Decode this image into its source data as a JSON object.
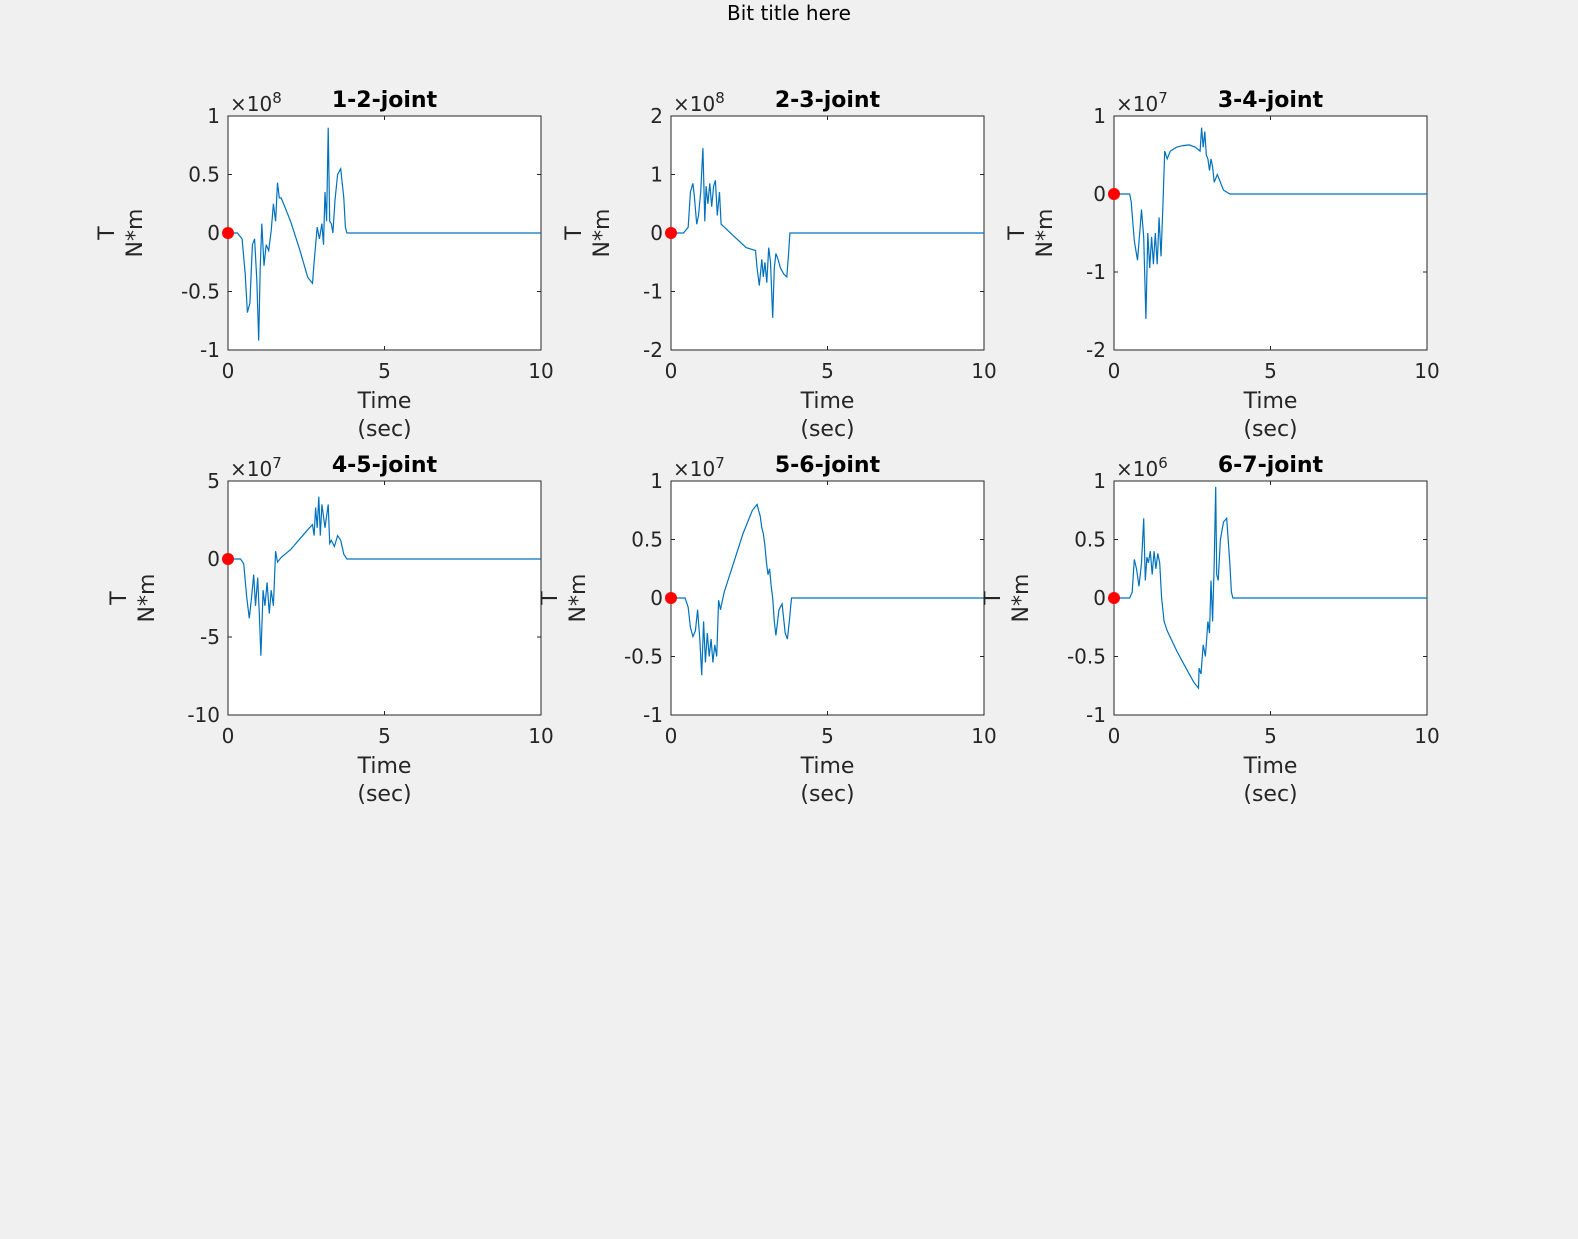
{
  "figure_title": "Bit title here",
  "colors": {
    "line": "#0072bd",
    "marker": "#ff0000",
    "figure_bg": "#f0f0f0",
    "axes_bg": "#ffffff"
  },
  "chart_data": [
    {
      "type": "line",
      "title": "1-2-joint",
      "xlabel": [
        "Time",
        "(sec)"
      ],
      "ylabel": [
        "T",
        "N*m"
      ],
      "xlim": [
        0,
        10
      ],
      "ylim": [
        -1,
        1
      ],
      "xticks": [
        0,
        5,
        10
      ],
      "yticks": [
        -1,
        -0.5,
        0,
        0.5,
        1
      ],
      "ytick_labels": [
        "-1",
        "-0.5",
        "0",
        "0.5",
        "1"
      ],
      "exponent": "8",
      "marker": {
        "x": 0,
        "y": 0
      },
      "series": [
        {
          "x": [
            0,
            0.3,
            0.45,
            0.55,
            0.62,
            0.7,
            0.78,
            0.85,
            0.92,
            0.98,
            1.03,
            1.08,
            1.15,
            1.22,
            1.3,
            1.38,
            1.45,
            1.52,
            1.58,
            1.64,
            1.7,
            2.0,
            2.3,
            2.55,
            2.7,
            2.75,
            2.85,
            2.92,
            3.0,
            3.05,
            3.1,
            3.15,
            3.2,
            3.25,
            3.3,
            3.35,
            3.42,
            3.5,
            3.6,
            3.7,
            3.75,
            3.8,
            3.85,
            10
          ],
          "y": [
            0,
            0,
            -0.05,
            -0.35,
            -0.68,
            -0.6,
            -0.1,
            -0.05,
            -0.4,
            -0.92,
            -0.3,
            0.08,
            -0.28,
            -0.1,
            -0.15,
            0.02,
            0.25,
            0.1,
            0.43,
            0.3,
            0.3,
            0.1,
            -0.15,
            -0.38,
            -0.43,
            -0.25,
            0.05,
            -0.05,
            0.08,
            -0.1,
            0.35,
            0.1,
            0.9,
            0.1,
            0.08,
            0.0,
            0.28,
            0.5,
            0.55,
            0.3,
            0.05,
            0,
            0,
            0
          ]
        }
      ]
    },
    {
      "type": "line",
      "title": "2-3-joint",
      "xlabel": [
        "Time",
        "(sec)"
      ],
      "ylabel": [
        "T",
        "N*m"
      ],
      "xlim": [
        0,
        10
      ],
      "ylim": [
        -2,
        2
      ],
      "xticks": [
        0,
        5,
        10
      ],
      "yticks": [
        -2,
        -1,
        0,
        1,
        2
      ],
      "ytick_labels": [
        "-2",
        "-1",
        "0",
        "1",
        "2"
      ],
      "exponent": "8",
      "marker": {
        "x": 0,
        "y": 0
      },
      "series": [
        {
          "x": [
            0,
            0.4,
            0.55,
            0.62,
            0.7,
            0.75,
            0.82,
            0.88,
            0.95,
            1.02,
            1.08,
            1.12,
            1.18,
            1.24,
            1.3,
            1.36,
            1.42,
            1.48,
            1.55,
            1.6,
            1.7,
            2.0,
            2.4,
            2.7,
            2.75,
            2.82,
            2.9,
            2.95,
            3.0,
            3.06,
            3.12,
            3.18,
            3.25,
            3.3,
            3.35,
            3.42,
            3.5,
            3.6,
            3.7,
            3.75,
            3.8,
            3.85,
            10
          ],
          "y": [
            0,
            0,
            0.1,
            0.7,
            0.85,
            0.6,
            0.15,
            0.3,
            0.7,
            1.45,
            0.2,
            0.8,
            0.5,
            0.85,
            0.45,
            0.8,
            0.9,
            0.3,
            0.7,
            0.15,
            0.1,
            -0.05,
            -0.25,
            -0.3,
            -0.6,
            -0.9,
            -0.45,
            -0.75,
            -0.5,
            -0.85,
            -0.25,
            -0.5,
            -1.45,
            -0.6,
            -0.35,
            -0.45,
            -0.6,
            -0.7,
            -0.75,
            -0.4,
            0,
            0,
            0
          ]
        }
      ]
    },
    {
      "type": "line",
      "title": "3-4-joint",
      "xlabel": [
        "Time",
        "(sec)"
      ],
      "ylabel": [
        "T",
        "N*m"
      ],
      "xlim": [
        0,
        10
      ],
      "ylim": [
        -2,
        1
      ],
      "xticks": [
        0,
        5,
        10
      ],
      "yticks": [
        -2,
        -1,
        0,
        1
      ],
      "ytick_labels": [
        "-2",
        "-1",
        "0",
        "1"
      ],
      "exponent": "7",
      "marker": {
        "x": 0,
        "y": 0
      },
      "series": [
        {
          "x": [
            0,
            0.5,
            0.55,
            0.65,
            0.75,
            0.82,
            0.88,
            0.95,
            1.02,
            1.08,
            1.14,
            1.2,
            1.26,
            1.32,
            1.38,
            1.44,
            1.5,
            1.56,
            1.62,
            1.7,
            1.8,
            2.0,
            2.2,
            2.4,
            2.6,
            2.75,
            2.8,
            2.85,
            2.9,
            2.95,
            3.0,
            3.05,
            3.1,
            3.15,
            3.2,
            3.3,
            3.5,
            3.7,
            3.8,
            10
          ],
          "y": [
            0,
            0,
            -0.1,
            -0.6,
            -0.85,
            -0.5,
            -0.2,
            -0.55,
            -1.6,
            -0.5,
            -0.95,
            -0.55,
            -0.9,
            -0.5,
            -0.9,
            -0.3,
            -0.8,
            -0.2,
            0.55,
            0.45,
            0.55,
            0.6,
            0.62,
            0.63,
            0.6,
            0.55,
            0.85,
            0.6,
            0.8,
            0.5,
            0.45,
            0.3,
            0.45,
            0.35,
            0.15,
            0.25,
            0.05,
            0.0,
            0,
            0
          ]
        }
      ]
    },
    {
      "type": "line",
      "title": "4-5-joint",
      "xlabel": [
        "Time",
        "(sec)"
      ],
      "ylabel": [
        "T",
        "N*m"
      ],
      "xlim": [
        0,
        10
      ],
      "ylim": [
        -10,
        5
      ],
      "xticks": [
        0,
        5,
        10
      ],
      "yticks": [
        -10,
        -5,
        0,
        5
      ],
      "ytick_labels": [
        "-10",
        "-5",
        "0",
        "5"
      ],
      "exponent": "7",
      "marker": {
        "x": 0,
        "y": 0
      },
      "series": [
        {
          "x": [
            0,
            0.4,
            0.5,
            0.6,
            0.68,
            0.75,
            0.82,
            0.88,
            0.95,
            1.0,
            1.05,
            1.12,
            1.18,
            1.25,
            1.32,
            1.38,
            1.45,
            1.52,
            1.58,
            1.7,
            2.0,
            2.3,
            2.6,
            2.7,
            2.75,
            2.8,
            2.85,
            2.9,
            2.95,
            3.0,
            3.1,
            3.2,
            3.25,
            3.3,
            3.4,
            3.5,
            3.6,
            3.7,
            3.8,
            10
          ],
          "y": [
            0,
            0,
            -0.3,
            -2.5,
            -3.8,
            -2.5,
            -1.0,
            -3.0,
            -1.2,
            -3.5,
            -6.2,
            -2.0,
            -3.0,
            -1.5,
            -3.5,
            -2.0,
            -3.0,
            0.5,
            -0.2,
            0.1,
            0.6,
            1.3,
            2.0,
            2.2,
            1.5,
            3.3,
            2.0,
            4.0,
            1.5,
            3.5,
            2.0,
            3.5,
            1.0,
            1.2,
            0.8,
            1.5,
            1.2,
            0.3,
            0,
            0
          ]
        }
      ]
    },
    {
      "type": "line",
      "title": "5-6-joint",
      "xlabel": [
        "Time",
        "(sec)"
      ],
      "ylabel": [
        "T",
        "N*m"
      ],
      "xlim": [
        0,
        10
      ],
      "ylim": [
        -1,
        1
      ],
      "xticks": [
        0,
        5,
        10
      ],
      "yticks": [
        -1,
        -0.5,
        0,
        0.5,
        1
      ],
      "ytick_labels": [
        "-1",
        "-0.5",
        "0",
        "0.5",
        "1"
      ],
      "exponent": "7",
      "marker": {
        "x": 0,
        "y": 0
      },
      "series": [
        {
          "x": [
            0,
            0.45,
            0.55,
            0.62,
            0.7,
            0.78,
            0.85,
            0.92,
            0.98,
            1.04,
            1.1,
            1.16,
            1.22,
            1.28,
            1.34,
            1.4,
            1.46,
            1.52,
            1.58,
            1.62,
            1.7,
            2.0,
            2.3,
            2.6,
            2.75,
            2.8,
            2.85,
            2.9,
            2.95,
            3.0,
            3.05,
            3.1,
            3.15,
            3.2,
            3.25,
            3.3,
            3.35,
            3.45,
            3.55,
            3.65,
            3.72,
            3.78,
            3.85,
            10
          ],
          "y": [
            0,
            0,
            -0.08,
            -0.25,
            -0.33,
            -0.28,
            -0.1,
            -0.35,
            -0.66,
            -0.2,
            -0.55,
            -0.3,
            -0.5,
            -0.35,
            -0.55,
            -0.4,
            -0.5,
            -0.02,
            -0.1,
            -0.05,
            0.05,
            0.3,
            0.55,
            0.75,
            0.8,
            0.75,
            0.7,
            0.6,
            0.55,
            0.45,
            0.3,
            0.2,
            0.25,
            0.1,
            0.0,
            -0.2,
            -0.32,
            -0.1,
            -0.05,
            -0.3,
            -0.35,
            -0.2,
            0,
            0
          ]
        }
      ]
    },
    {
      "type": "line",
      "title": "6-7-joint",
      "xlabel": [
        "Time",
        "(sec)"
      ],
      "ylabel": [
        "T",
        "N*m"
      ],
      "xlim": [
        0,
        10
      ],
      "ylim": [
        -1,
        1
      ],
      "xticks": [
        0,
        5,
        10
      ],
      "yticks": [
        -1,
        -0.5,
        0,
        0.5,
        1
      ],
      "ytick_labels": [
        "-1",
        "-0.5",
        "0",
        "0.5",
        "1"
      ],
      "exponent": "6",
      "marker": {
        "x": 0,
        "y": 0
      },
      "series": [
        {
          "x": [
            0,
            0.5,
            0.58,
            0.65,
            0.72,
            0.8,
            0.88,
            0.95,
            1.0,
            1.05,
            1.1,
            1.16,
            1.22,
            1.28,
            1.34,
            1.4,
            1.46,
            1.52,
            1.6,
            1.7,
            2.0,
            2.3,
            2.55,
            2.7,
            2.72,
            2.78,
            2.85,
            2.92,
            3.0,
            3.05,
            3.1,
            3.15,
            3.2,
            3.25,
            3.28,
            3.33,
            3.4,
            3.5,
            3.6,
            3.7,
            3.75,
            3.8,
            3.85,
            10
          ],
          "y": [
            0,
            0,
            0.05,
            0.33,
            0.25,
            0.1,
            0.3,
            0.68,
            0.15,
            0.35,
            0.3,
            0.4,
            0.2,
            0.4,
            0.25,
            0.38,
            0.3,
            0.0,
            -0.2,
            -0.28,
            -0.45,
            -0.6,
            -0.72,
            -0.77,
            -0.6,
            -0.65,
            -0.4,
            -0.5,
            -0.2,
            -0.3,
            0.15,
            -0.2,
            0.3,
            0.95,
            0.2,
            0.15,
            0.5,
            0.65,
            0.68,
            0.3,
            0.05,
            0,
            0,
            0
          ]
        }
      ]
    }
  ]
}
